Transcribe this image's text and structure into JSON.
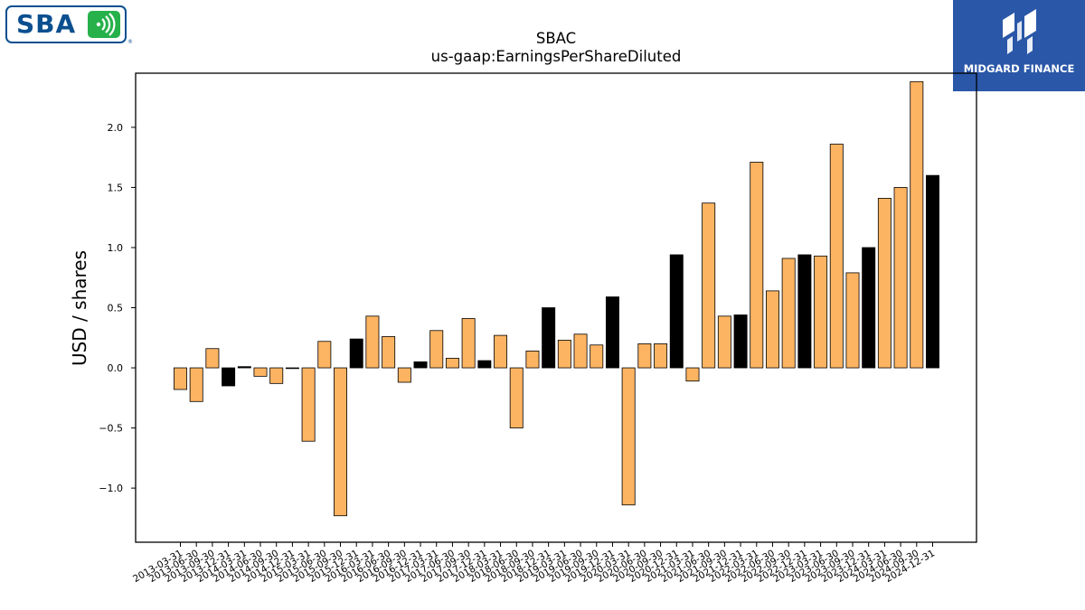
{
  "logos": {
    "left_text": "SBA",
    "left_mark": "®",
    "right_text": "MIDGARD FINANCE"
  },
  "colors": {
    "bar_default": "#FDB462",
    "bar_highlight": "#000000",
    "bar_edge": "#000000",
    "logo_left_blue": "#0b4f8f",
    "logo_left_green": "#26b14b",
    "logo_right_bg": "#2a57a8"
  },
  "chart_data": {
    "type": "bar",
    "title": "SBAC",
    "subtitle": "us-gaap:EarningsPerShareDiluted",
    "xlabel": "",
    "ylabel": "USD / shares",
    "ylim": [
      -1.45,
      2.45
    ],
    "yticks": [
      -1.0,
      -0.5,
      0.0,
      0.5,
      1.0,
      1.5,
      2.0
    ],
    "ytick_labels": [
      "−1.0",
      "−0.5",
      "0.0",
      "0.5",
      "1.0",
      "1.5",
      "2.0"
    ],
    "grid": false,
    "legend": "none",
    "categories": [
      "2013-03-31",
      "2013-06-30",
      "2013-09-30",
      "2013-12-31",
      "2014-03-31",
      "2014-06-30",
      "2014-09-30",
      "2014-12-31",
      "2015-03-31",
      "2015-06-30",
      "2015-09-30",
      "2015-12-31",
      "2016-03-31",
      "2016-06-30",
      "2016-09-30",
      "2016-12-31",
      "2017-03-31",
      "2017-06-30",
      "2017-09-30",
      "2017-12-31",
      "2018-03-31",
      "2018-06-30",
      "2018-09-30",
      "2018-12-31",
      "2019-03-31",
      "2019-06-30",
      "2019-09-30",
      "2019-12-31",
      "2020-03-31",
      "2020-06-30",
      "2020-09-30",
      "2020-12-31",
      "2021-03-31",
      "2021-06-30",
      "2021-09-30",
      "2021-12-31",
      "2022-03-31",
      "2022-06-30",
      "2022-09-30",
      "2022-12-31",
      "2023-03-31",
      "2023-06-30",
      "2023-09-30",
      "2023-12-31",
      "2024-03-31",
      "2024-06-30",
      "2024-09-30",
      "2024-12-31"
    ],
    "values": [
      -0.18,
      -0.28,
      0.16,
      -0.15,
      0.01,
      -0.07,
      -0.13,
      -0.005,
      -0.61,
      0.22,
      -1.23,
      0.24,
      0.43,
      0.26,
      -0.12,
      0.05,
      0.31,
      0.08,
      0.41,
      0.06,
      0.27,
      -0.5,
      0.14,
      0.5,
      0.23,
      0.28,
      0.19,
      0.59,
      -1.14,
      0.2,
      0.2,
      0.94,
      -0.11,
      1.37,
      0.43,
      0.44,
      1.71,
      0.64,
      0.91,
      0.94,
      0.93,
      1.86,
      0.79,
      1.0,
      1.41,
      1.5,
      2.38,
      1.6
    ],
    "highlight": [
      false,
      false,
      false,
      true,
      true,
      false,
      false,
      true,
      false,
      false,
      false,
      true,
      false,
      false,
      false,
      true,
      false,
      false,
      false,
      true,
      false,
      false,
      false,
      true,
      false,
      false,
      false,
      true,
      false,
      false,
      false,
      true,
      false,
      false,
      false,
      true,
      false,
      false,
      false,
      true,
      false,
      false,
      false,
      true,
      false,
      false,
      false,
      true
    ]
  }
}
